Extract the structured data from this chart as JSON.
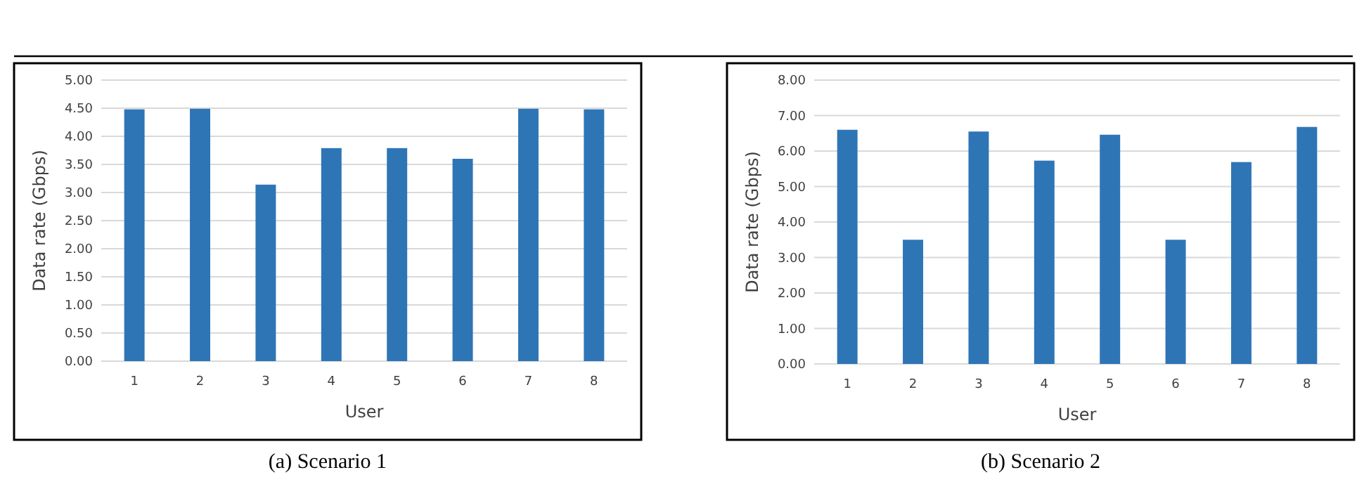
{
  "chart_data": [
    {
      "type": "bar",
      "title": "(a)  Scenario 1",
      "xlabel": "User",
      "ylabel": "Data rate (Gbps)",
      "categories": [
        "1",
        "2",
        "3",
        "4",
        "5",
        "6",
        "7",
        "8"
      ],
      "color": "#2e75b6",
      "values": [
        4.48,
        4.49,
        3.14,
        3.79,
        3.79,
        3.6,
        4.49,
        4.48
      ],
      "ylim": [
        0,
        5
      ],
      "yticks": [
        {
          "value": 0,
          "label": "0.00"
        },
        {
          "value": 0.5,
          "label": "0.50"
        },
        {
          "value": 1,
          "label": "1.00"
        },
        {
          "value": 1.5,
          "label": "1.50"
        },
        {
          "value": 2,
          "label": "2.00"
        },
        {
          "value": 2.5,
          "label": "2.50"
        },
        {
          "value": 3,
          "label": "3.00"
        },
        {
          "value": 3.5,
          "label": "3.50"
        },
        {
          "value": 4,
          "label": "4.00"
        },
        {
          "value": 4.5,
          "label": "4.50"
        },
        {
          "value": 5,
          "label": "5.00"
        }
      ],
      "grid": "y"
    },
    {
      "type": "bar",
      "title": "(b) Scenario 2",
      "xlabel": "User",
      "ylabel": "Data rate (Gbps)",
      "categories": [
        "1",
        "2",
        "3",
        "4",
        "5",
        "6",
        "7",
        "8"
      ],
      "color": "#2e75b6",
      "values": [
        6.6,
        3.5,
        6.55,
        5.73,
        6.46,
        3.5,
        5.69,
        6.68
      ],
      "ylim": [
        0,
        8
      ],
      "yticks": [
        {
          "value": 0,
          "label": "0.00"
        },
        {
          "value": 1,
          "label": "1.00"
        },
        {
          "value": 2,
          "label": "2.00"
        },
        {
          "value": 3,
          "label": "3.00"
        },
        {
          "value": 4,
          "label": "4.00"
        },
        {
          "value": 5,
          "label": "5.00"
        },
        {
          "value": 6,
          "label": "6.00"
        },
        {
          "value": 7,
          "label": "7.00"
        },
        {
          "value": 8,
          "label": "8.00"
        }
      ],
      "grid": "y"
    }
  ]
}
